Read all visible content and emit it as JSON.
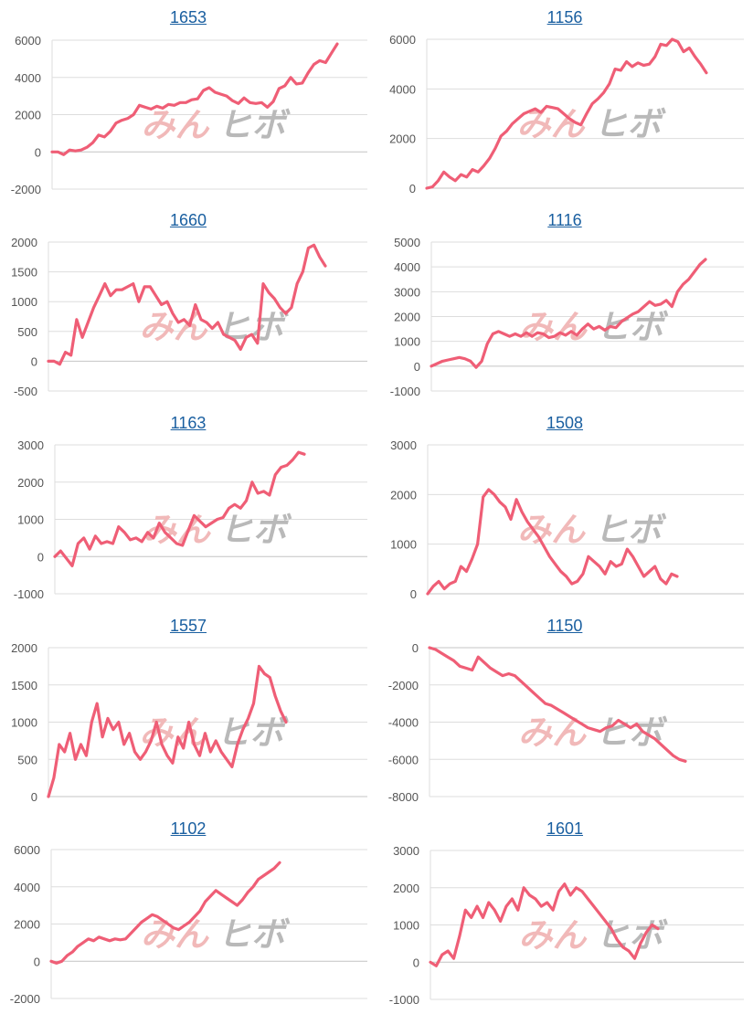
{
  "colors": {
    "line": "#ef5e76",
    "grid": "#dddddd",
    "axis": "#bbbbbb",
    "tick": "#555555",
    "title": "#1a5fa0",
    "wm_left": "#f1b9b9",
    "wm_right": "#b9b9b9"
  },
  "watermark": {
    "left": "みん",
    "right": "ヒボ"
  },
  "chart_data": [
    {
      "type": "line",
      "title": "1653",
      "ylim": [
        -2000,
        6000
      ],
      "ticks": [
        6000,
        4000,
        2000,
        0,
        -2000
      ],
      "values": [
        0,
        0,
        -150,
        100,
        50,
        100,
        250,
        500,
        900,
        800,
        1100,
        1550,
        1700,
        1800,
        2000,
        2500,
        2400,
        2300,
        2450,
        2350,
        2550,
        2500,
        2650,
        2650,
        2800,
        2850,
        3300,
        3450,
        3200,
        3100,
        3000,
        2750,
        2600,
        2900,
        2650,
        2600,
        2650,
        2400,
        2700,
        3400,
        3550,
        4000,
        3650,
        3700,
        4250,
        4700,
        4900,
        4800,
        5300,
        5800
      ]
    },
    {
      "type": "line",
      "title": "1156",
      "ylim": [
        0,
        6000
      ],
      "ticks": [
        6000,
        4000,
        2000,
        0
      ],
      "values": [
        0,
        50,
        300,
        650,
        450,
        300,
        550,
        450,
        750,
        650,
        900,
        1200,
        1600,
        2100,
        2300,
        2600,
        2800,
        3000,
        3100,
        3200,
        3050,
        3300,
        3250,
        3200,
        3000,
        2800,
        2650,
        2550,
        3000,
        3400,
        3600,
        3850,
        4200,
        4800,
        4750,
        5100,
        4900,
        5050,
        4950,
        5000,
        5300,
        5800,
        5750,
        6000,
        5900,
        5500,
        5650,
        5300,
        5000,
        4650
      ]
    },
    {
      "type": "line",
      "title": "1660",
      "ylim": [
        -500,
        2000
      ],
      "ticks": [
        2000,
        1500,
        1000,
        500,
        0,
        -500
      ],
      "values": [
        0,
        0,
        -50,
        150,
        100,
        700,
        400,
        650,
        900,
        1100,
        1300,
        1100,
        1200,
        1200,
        1250,
        1300,
        1000,
        1250,
        1250,
        1100,
        950,
        1000,
        800,
        650,
        700,
        600,
        950,
        700,
        650,
        550,
        650,
        450,
        400,
        350,
        200,
        400,
        450,
        300,
        1300,
        1150,
        1050,
        900,
        800,
        900,
        1300,
        1500,
        1900,
        1950,
        1750,
        1600
      ]
    },
    {
      "type": "line",
      "title": "1116",
      "ylim": [
        -1000,
        5000
      ],
      "ticks": [
        5000,
        4000,
        3000,
        2000,
        1000,
        0,
        -1000
      ],
      "values": [
        0,
        100,
        200,
        250,
        300,
        350,
        300,
        200,
        -50,
        200,
        900,
        1300,
        1400,
        1300,
        1200,
        1300,
        1200,
        1350,
        1200,
        1350,
        1300,
        1150,
        1200,
        1350,
        1250,
        1400,
        1250,
        1500,
        1700,
        1500,
        1600,
        1450,
        1600,
        1550,
        1800,
        1950,
        2100,
        2200,
        2400,
        2600,
        2450,
        2500,
        2650,
        2400,
        3000,
        3300,
        3500,
        3800,
        4100,
        4300
      ]
    },
    {
      "type": "line",
      "title": "1163",
      "ylim": [
        -1000,
        3000
      ],
      "ticks": [
        3000,
        2000,
        1000,
        0,
        -1000
      ],
      "values": [
        0,
        150,
        -50,
        -250,
        350,
        500,
        200,
        550,
        350,
        400,
        350,
        800,
        650,
        450,
        500,
        400,
        650,
        500,
        900,
        650,
        500,
        350,
        300,
        700,
        1100,
        950,
        800,
        900,
        1000,
        1050,
        1300,
        1400,
        1300,
        1500,
        2000,
        1700,
        1750,
        1650,
        2200,
        2400,
        2450,
        2600,
        2800,
        2750
      ]
    },
    {
      "type": "line",
      "title": "1508",
      "ylim": [
        0,
        3000
      ],
      "ticks": [
        3000,
        2000,
        1000,
        0
      ],
      "values": [
        0,
        150,
        250,
        100,
        200,
        250,
        550,
        450,
        700,
        1000,
        1950,
        2100,
        2000,
        1850,
        1750,
        1500,
        1900,
        1650,
        1450,
        1300,
        1150,
        950,
        750,
        600,
        450,
        350,
        200,
        250,
        400,
        750,
        650,
        550,
        400,
        650,
        550,
        600,
        900,
        750,
        550,
        350,
        450,
        550,
        300,
        200,
        400,
        350
      ]
    },
    {
      "type": "line",
      "title": "1557",
      "ylim": [
        0,
        2000
      ],
      "ticks": [
        2000,
        1500,
        1000,
        500,
        0
      ],
      "values": [
        0,
        250,
        700,
        600,
        850,
        500,
        700,
        550,
        1000,
        1250,
        800,
        1050,
        900,
        1000,
        700,
        850,
        600,
        500,
        600,
        750,
        1000,
        700,
        550,
        450,
        800,
        650,
        1000,
        700,
        550,
        850,
        600,
        750,
        600,
        500,
        400,
        700,
        900,
        1050,
        1250,
        1750,
        1650,
        1600,
        1350,
        1150,
        1000
      ]
    },
    {
      "type": "line",
      "title": "1150",
      "ylim": [
        -8000,
        0
      ],
      "ticks": [
        0,
        -2000,
        -4000,
        -6000,
        -8000
      ],
      "values": [
        0,
        -100,
        -300,
        -500,
        -700,
        -1000,
        -1100,
        -1200,
        -500,
        -800,
        -1100,
        -1300,
        -1500,
        -1400,
        -1500,
        -1800,
        -2100,
        -2400,
        -2700,
        -3000,
        -3100,
        -3300,
        -3500,
        -3700,
        -3900,
        -4100,
        -4300,
        -4400,
        -4500,
        -4300,
        -4200,
        -3900,
        -4100,
        -4300,
        -4100,
        -4500,
        -4700,
        -4900,
        -5200,
        -5500,
        -5800,
        -6000,
        -6100
      ]
    },
    {
      "type": "line",
      "title": "1102",
      "ylim": [
        -2000,
        6000
      ],
      "ticks": [
        6000,
        4000,
        2000,
        0,
        -2000
      ],
      "values": [
        0,
        -100,
        0,
        300,
        500,
        800,
        1000,
        1200,
        1100,
        1300,
        1200,
        1100,
        1200,
        1150,
        1200,
        1500,
        1800,
        2100,
        2300,
        2500,
        2400,
        2200,
        2000,
        1800,
        1700,
        1900,
        2100,
        2400,
        2700,
        3200,
        3500,
        3800,
        3600,
        3400,
        3200,
        3000,
        3300,
        3700,
        4000,
        4400,
        4600,
        4800,
        5000,
        5300
      ]
    },
    {
      "type": "line",
      "title": "1601",
      "ylim": [
        -1000,
        3000
      ],
      "ticks": [
        3000,
        2000,
        1000,
        0,
        -1000
      ],
      "values": [
        0,
        -100,
        200,
        300,
        100,
        700,
        1400,
        1200,
        1500,
        1200,
        1600,
        1400,
        1100,
        1500,
        1700,
        1400,
        2000,
        1800,
        1700,
        1500,
        1600,
        1400,
        1900,
        2100,
        1800,
        2000,
        1900,
        1700,
        1500,
        1300,
        1100,
        900,
        600,
        400,
        300,
        100,
        500,
        800,
        1000,
        900
      ]
    }
  ]
}
